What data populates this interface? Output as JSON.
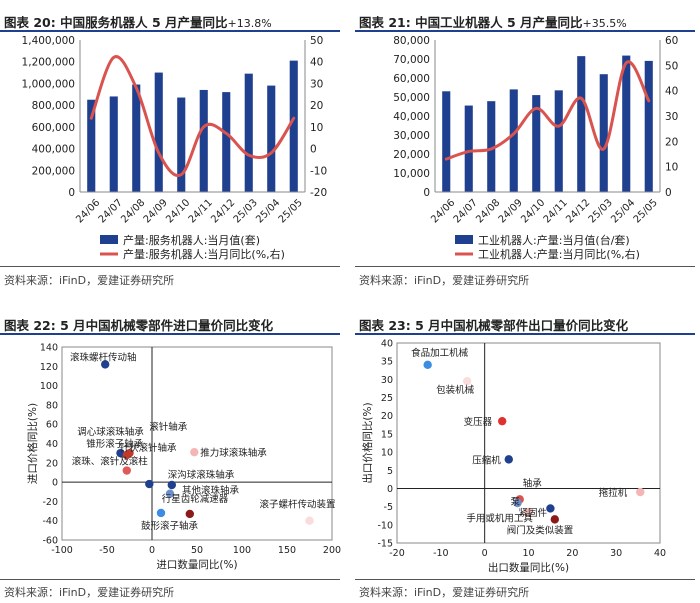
{
  "source_text": "资料来源：iFinD，爱建证券研究所",
  "chart_data": [
    {
      "id": "fig20",
      "type": "bar-line",
      "figure_label": "图表 20:",
      "title": "中国服务机器人 5 月产量同比",
      "title_suffix": "+13.8%",
      "categories": [
        "24/06",
        "24/07",
        "24/08",
        "24/09",
        "24/10",
        "24/11",
        "24/12",
        "25/03",
        "25/04",
        "25/05"
      ],
      "bars": {
        "name": "产量:服务机器人:当月值(套)",
        "color": "#1f3f8f",
        "values": [
          850000,
          880000,
          990000,
          1100000,
          870000,
          940000,
          920000,
          1090000,
          980000,
          1210000
        ]
      },
      "line": {
        "name": "产量:服务机器人:当月同比(%,右)",
        "color": "#d9534f",
        "values": [
          14,
          42,
          28,
          -2,
          -12,
          10,
          7,
          -3,
          -2,
          14
        ]
      },
      "ylim_left": [
        0,
        1400000
      ],
      "yticks_left": [
        0,
        200000,
        400000,
        600000,
        800000,
        1000000,
        1200000,
        1400000
      ],
      "yticklabels_left": [
        "0",
        "200,000",
        "400,000",
        "600,000",
        "800,000",
        "1,000,000",
        "1,200,000",
        "1,400,000"
      ],
      "ylim_right": [
        -20,
        50
      ],
      "yticks_right": [
        -20,
        -10,
        0,
        10,
        20,
        30,
        40,
        50
      ],
      "yticklabels_right": [
        "-20",
        "-10",
        "0",
        "10",
        "20",
        "30",
        "40",
        "50"
      ]
    },
    {
      "id": "fig21",
      "type": "bar-line",
      "figure_label": "图表 21:",
      "title": "中国工业机器人 5 月产量同比",
      "title_suffix": "+35.5%",
      "categories": [
        "24/06",
        "24/07",
        "24/08",
        "24/09",
        "24/10",
        "24/11",
        "24/12",
        "25/03",
        "25/04",
        "25/05"
      ],
      "bars": {
        "name": "工业机器人:产量:当月值(台/套)",
        "color": "#1f3f8f",
        "values": [
          53000,
          45500,
          47800,
          54000,
          51000,
          53500,
          71500,
          62000,
          71800,
          69000
        ]
      },
      "line": {
        "name": "工业机器人:产量:当月同比(%,右)",
        "color": "#d9534f",
        "values": [
          13,
          16,
          17,
          23,
          33,
          26,
          37,
          17,
          51,
          36
        ]
      },
      "ylim_left": [
        0,
        80000
      ],
      "yticks_left": [
        0,
        10000,
        20000,
        30000,
        40000,
        50000,
        60000,
        70000,
        80000
      ],
      "yticklabels_left": [
        "0",
        "10,000",
        "20,000",
        "30,000",
        "40,000",
        "50,000",
        "60,000",
        "70,000",
        "80,000"
      ],
      "ylim_right": [
        0,
        60
      ],
      "yticks_right": [
        0,
        10,
        20,
        30,
        40,
        50,
        60
      ],
      "yticklabels_right": [
        "0",
        "10",
        "20",
        "30",
        "40",
        "50",
        "60"
      ]
    },
    {
      "id": "fig22",
      "type": "scatter",
      "figure_label": "图表 22:",
      "title": "5 月中国机械零部件进口量价同比变化",
      "xlabel": "进口数量同比(%)",
      "ylabel": "进口价格同比(%)",
      "xlim": [
        -100,
        200
      ],
      "xticks": [
        -100,
        -50,
        0,
        50,
        100,
        150,
        200
      ],
      "ylim": [
        -60,
        140
      ],
      "yticks": [
        -60,
        -40,
        -20,
        0,
        20,
        40,
        60,
        80,
        100,
        120,
        140
      ],
      "points": [
        {
          "label": "滚珠螺杆传动轴",
          "x": -52,
          "y": 122,
          "color": "#1f3f8f"
        },
        {
          "label": "调心球滚珠轴承",
          "x": -35,
          "y": 30,
          "color": "#1f3f8f"
        },
        {
          "label": "锥形滚子轴承",
          "x": -28,
          "y": 28,
          "color": "#c0392b"
        },
        {
          "label": "针状滚针轴承",
          "x": -25,
          "y": 30,
          "color": "#c0392b"
        },
        {
          "label": "滚珠、滚针及滚柱",
          "x": -28,
          "y": 12,
          "color": "#e05a5a"
        },
        {
          "label": "滚针轴承",
          "x": -3,
          "y": -2,
          "color": "#1f3f8f"
        },
        {
          "label": "推力球滚珠轴承",
          "x": 47,
          "y": 31,
          "color": "#f4b5b5"
        },
        {
          "label": "深沟球滚珠轴承",
          "x": 22,
          "y": -3,
          "color": "#1f3f8f"
        },
        {
          "label": "其他滚珠轴承",
          "x": 20,
          "y": -12,
          "color": "#6c8ec9"
        },
        {
          "label": "行星齿轮减速器",
          "x": 42,
          "y": -33,
          "color": "#8b1a1a"
        },
        {
          "label": "鼓形滚子轴承",
          "x": 10,
          "y": -32,
          "color": "#3a8de0"
        },
        {
          "label": "滚子螺杆传动装置",
          "x": 175,
          "y": -40,
          "color": "#fadcdc"
        }
      ]
    },
    {
      "id": "fig23",
      "type": "scatter",
      "figure_label": "图表 23:",
      "title": "5 月中国机械零部件出口量价同比变化",
      "xlabel": "出口数量同比(%)",
      "ylabel": "出口价格同比(%)",
      "xlim": [
        -20,
        40
      ],
      "xticks": [
        -20,
        -10,
        0,
        10,
        20,
        30,
        40
      ],
      "ylim": [
        -15,
        40
      ],
      "yticks": [
        -15,
        -10,
        -5,
        0,
        5,
        10,
        15,
        20,
        25,
        30,
        35,
        40
      ],
      "points": [
        {
          "label": "食品加工机械",
          "x": -13,
          "y": 34,
          "color": "#3a8de0"
        },
        {
          "label": "包装机械",
          "x": -4,
          "y": 29.5,
          "color": "#fadcdc"
        },
        {
          "label": "变压器",
          "x": 4,
          "y": 18.5,
          "color": "#e03030"
        },
        {
          "label": "压缩机",
          "x": 5.5,
          "y": 8,
          "color": "#1f3f8f"
        },
        {
          "label": "轴承",
          "x": 8,
          "y": -3,
          "color": "#d9534f"
        },
        {
          "label": "泵",
          "x": 7.5,
          "y": -4,
          "color": "#6c8ec9"
        },
        {
          "label": "紧固件",
          "x": 10,
          "y": -6.5,
          "color": "#f4b5b5"
        },
        {
          "label": "手用或机用工具",
          "x": 15,
          "y": -5.5,
          "color": "#1f3f8f"
        },
        {
          "label": "阀门及类似装置",
          "x": 16,
          "y": -8.5,
          "color": "#8b1a1a"
        },
        {
          "label": "拖拉机",
          "x": 35.5,
          "y": -1,
          "color": "#f4b5b5"
        }
      ]
    }
  ]
}
